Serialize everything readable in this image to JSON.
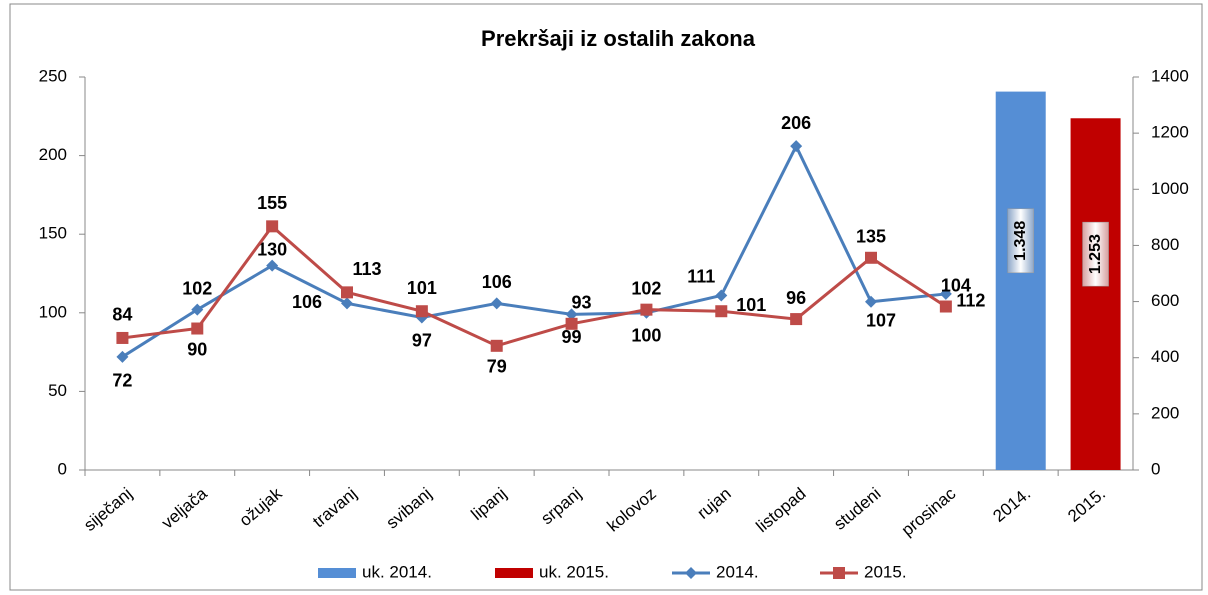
{
  "chart_data": {
    "type": "line",
    "title": "Prekršaji iz ostalih zakona",
    "categories": [
      "siječanj",
      "veljača",
      "ožujak",
      "travanj",
      "svibanj",
      "lipanj",
      "srpanj",
      "kolovoz",
      "rujan",
      "listopad",
      "studeni",
      "prosinac",
      "2014.",
      "2015."
    ],
    "series": [
      {
        "name": "uk. 2014.",
        "type": "bar",
        "axis": "y2",
        "color": "#558ed5",
        "values": [
          null,
          null,
          null,
          null,
          null,
          null,
          null,
          null,
          null,
          null,
          null,
          null,
          1348,
          null
        ],
        "value_labels": [
          null,
          null,
          null,
          null,
          null,
          null,
          null,
          null,
          null,
          null,
          null,
          null,
          "1.348",
          null
        ]
      },
      {
        "name": "uk. 2015.",
        "type": "bar",
        "axis": "y2",
        "color": "#c00000",
        "values": [
          null,
          null,
          null,
          null,
          null,
          null,
          null,
          null,
          null,
          null,
          null,
          null,
          null,
          1253
        ],
        "value_labels": [
          null,
          null,
          null,
          null,
          null,
          null,
          null,
          null,
          null,
          null,
          null,
          null,
          null,
          "1.253"
        ]
      },
      {
        "name": "2014.",
        "type": "line",
        "marker": "diamond",
        "color": "#4a7ebb",
        "values": [
          72,
          102,
          130,
          106,
          97,
          106,
          99,
          100,
          111,
          206,
          107,
          112,
          null,
          null
        ]
      },
      {
        "name": "2015.",
        "type": "line",
        "marker": "square",
        "color": "#be4b48",
        "values": [
          84,
          90,
          155,
          113,
          101,
          79,
          93,
          102,
          101,
          96,
          135,
          104,
          null,
          null
        ]
      }
    ],
    "ylim": [
      0,
      250
    ],
    "yticks": [
      0,
      50,
      100,
      150,
      200,
      250
    ],
    "y2lim": [
      0,
      1400
    ],
    "y2ticks": [
      0,
      200,
      400,
      600,
      800,
      1000,
      1200,
      1400
    ],
    "grid": false,
    "legend": "bottom"
  }
}
